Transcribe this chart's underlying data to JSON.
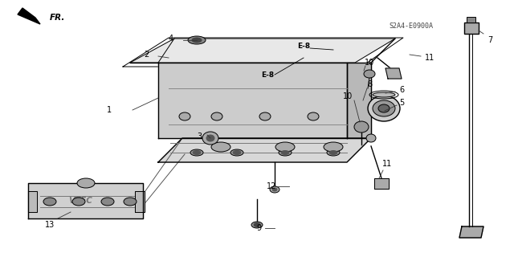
{
  "bg_color": "#ffffff",
  "line_color": "#000000",
  "label_color": "#000000",
  "diagram_code": "S2A4-E0900A",
  "fr_label": "FR.",
  "part_labels": [
    "1",
    "2",
    "3",
    "4",
    "5",
    "6",
    "7",
    "8",
    "9",
    "10",
    "10",
    "11",
    "11",
    "12",
    "13"
  ],
  "e8_labels": [
    "E-8",
    "E-8"
  ]
}
